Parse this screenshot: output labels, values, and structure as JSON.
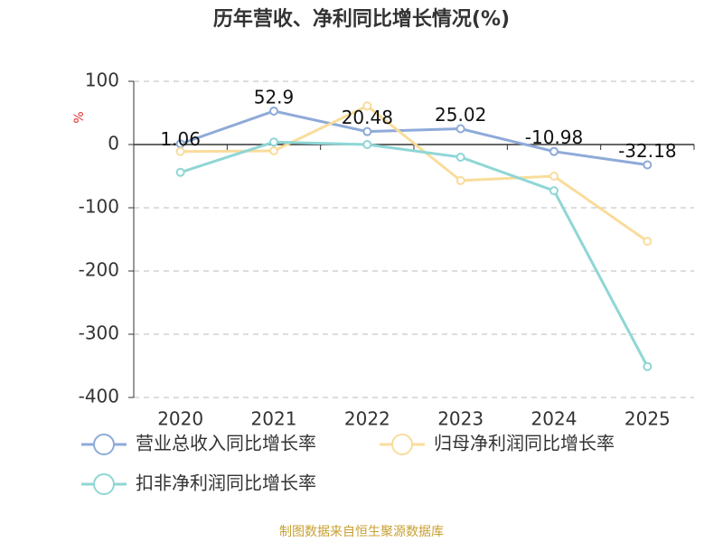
{
  "chart_data": {
    "type": "line",
    "title": "历年营收、净利同比增长情况(%)",
    "y_label": "%",
    "categories": [
      "2020",
      "2021",
      "2022",
      "2023",
      "2024",
      "2025"
    ],
    "series": [
      {
        "name": "营业总收入同比增长率",
        "color": "#8eaad8",
        "values": [
          1.06,
          52.9,
          20.48,
          25.02,
          -10.98,
          -32.18
        ],
        "show_labels": true
      },
      {
        "name": "归母净利润同比增长率",
        "color": "#f9dc9b",
        "values": [
          -11,
          -10,
          61,
          -57,
          -50,
          -153
        ],
        "show_labels": false
      },
      {
        "name": "扣非净利润同比增长率",
        "color": "#8fd6d6",
        "values": [
          -44,
          4,
          0,
          -20,
          -73,
          -351
        ],
        "show_labels": false
      }
    ],
    "ylim": [
      -400,
      100
    ],
    "yticks": [
      100,
      0,
      -100,
      -200,
      -300,
      -400
    ],
    "grid": true,
    "source": "制图数据来自恒生聚源数据库"
  }
}
